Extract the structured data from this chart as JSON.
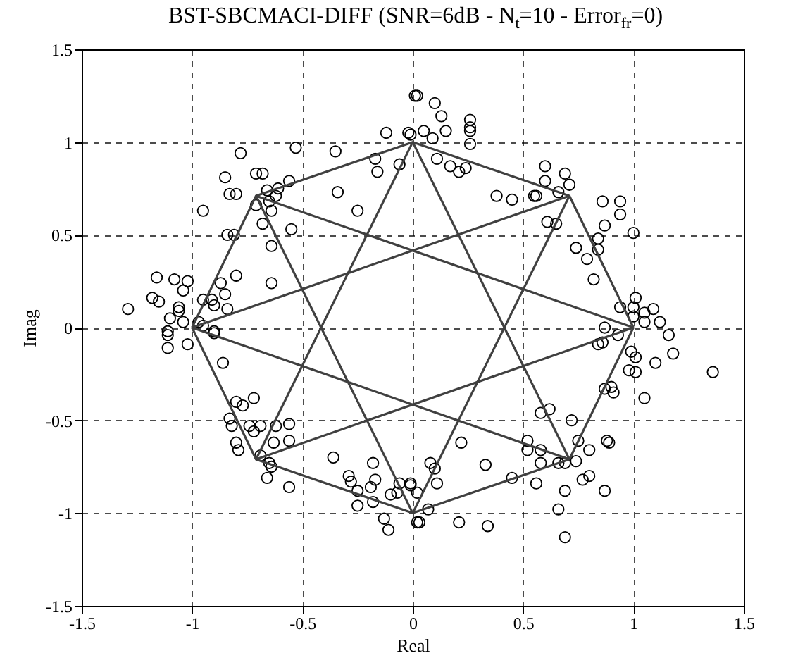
{
  "chart_data": {
    "type": "scatter",
    "title": "BST-SBCMACI-DIFF (SNR=6dB - N$_{t}$=10 - Error$_{fr}$=0)",
    "xlabel": "Real",
    "ylabel": "Imag",
    "xlim": [
      -1.5,
      1.5
    ],
    "ylim": [
      -1.5,
      1.5
    ],
    "xticks": [
      -1.5,
      -1,
      -0.5,
      0,
      0.5,
      1,
      1.5
    ],
    "yticks": [
      -1.5,
      -1,
      -0.5,
      0,
      0.5,
      1,
      1.5
    ],
    "grid": true,
    "series": [
      {
        "marker": "circle",
        "color": "#000000",
        "x": [
          0.01,
          -0.12,
          -0.01,
          -0.53,
          -0.35,
          -0.78,
          -0.17,
          -0.71,
          -0.68,
          -0.85,
          -0.16,
          -0.06,
          -0.83,
          -0.8,
          -0.56,
          -0.61,
          -0.66,
          -0.62,
          -0.65,
          -0.71,
          -0.64,
          -0.34,
          -0.25,
          -0.95,
          -0.68,
          -0.55,
          -0.84,
          -0.81,
          -0.64,
          -0.8,
          -0.64,
          -0.87,
          -1.16,
          -1.08,
          -1.02,
          -1.04,
          -0.85,
          -1.18,
          -1.15,
          -0.95,
          -0.91,
          -1.06,
          -1.06,
          -0.9,
          -0.84,
          -1.29,
          -1.1,
          -1.04,
          -0.97,
          -0.95,
          -1.11,
          -0.9,
          -1.11,
          -1.02,
          -1.11,
          -0.9,
          -0.86,
          -0.8,
          -0.77,
          -0.72,
          -0.83,
          -0.82,
          -0.74,
          -0.72,
          -0.69,
          -0.62,
          -0.56,
          -0.56,
          -0.63,
          -0.8,
          -0.79,
          -0.69,
          -0.65,
          -0.64,
          -0.66,
          -0.56,
          -0.36,
          -0.18,
          -0.29,
          -0.28,
          -0.17,
          -0.25,
          -0.19,
          -0.18,
          -0.25,
          -0.1,
          -0.06,
          -0.01,
          -0.07,
          -0.13,
          -0.11,
          0.02,
          0.08,
          0.1,
          0.11,
          -0.01,
          0.02,
          0.07,
          0.03,
          0.21,
          0.34,
          0.22,
          0.33,
          0.45,
          0.56,
          0.52,
          0.52,
          0.58,
          0.58,
          0.66,
          0.69,
          0.74,
          0.75,
          0.8,
          0.88,
          0.89,
          0.77,
          0.8,
          0.69,
          0.87,
          0.66,
          0.69,
          0.58,
          0.62,
          0.72,
          0.87,
          0.9,
          0.91,
          1.05,
          0.84,
          0.86,
          0.93,
          0.99,
          1.01,
          0.98,
          1.01,
          1.1,
          1.18,
          1.16,
          1.36,
          0.87,
          0.02,
          0.1,
          0.13,
          0.15,
          0.26,
          0.26,
          0.26,
          0.26,
          -0.02,
          0.05,
          0.09,
          0.11,
          0.17,
          0.21,
          0.24,
          0.38,
          0.45,
          0.55,
          0.56,
          0.6,
          0.69,
          0.71,
          0.6,
          0.66,
          0.61,
          0.65,
          0.86,
          0.94,
          0.94,
          0.87,
          1.0,
          0.84,
          0.74,
          0.84,
          0.79,
          0.82,
          0.94,
          1.01,
          1.0,
          1.05,
          1.09,
          1.12,
          1.0,
          1.05
        ],
        "values": [
          1.25,
          1.05,
          1.04,
          0.97,
          0.95,
          0.94,
          0.91,
          0.83,
          0.83,
          0.81,
          0.84,
          0.88,
          0.72,
          0.72,
          0.79,
          0.75,
          0.74,
          0.71,
          0.68,
          0.66,
          0.63,
          0.73,
          0.63,
          0.63,
          0.56,
          0.53,
          0.5,
          0.5,
          0.44,
          0.28,
          0.24,
          0.24,
          0.27,
          0.26,
          0.25,
          0.2,
          0.18,
          0.16,
          0.14,
          0.15,
          0.15,
          0.11,
          0.09,
          0.12,
          0.1,
          0.1,
          0.05,
          0.03,
          0.03,
          0.01,
          -0.02,
          -0.02,
          -0.04,
          -0.09,
          -0.11,
          -0.03,
          -0.19,
          -0.4,
          -0.42,
          -0.38,
          -0.49,
          -0.53,
          -0.53,
          -0.56,
          -0.53,
          -0.53,
          -0.52,
          -0.61,
          -0.62,
          -0.62,
          -0.66,
          -0.69,
          -0.73,
          -0.75,
          -0.81,
          -0.86,
          -0.7,
          -0.73,
          -0.8,
          -0.83,
          -0.82,
          -0.88,
          -0.86,
          -0.94,
          -0.96,
          -0.9,
          -0.84,
          -0.85,
          -0.89,
          -1.03,
          -1.09,
          -1.05,
          -0.73,
          -0.76,
          -0.84,
          -0.84,
          -0.89,
          -0.98,
          -1.05,
          -1.05,
          -1.07,
          -0.62,
          -0.74,
          -0.81,
          -0.84,
          -0.61,
          -0.66,
          -0.66,
          -0.73,
          -0.73,
          -0.73,
          -0.72,
          -0.61,
          -0.66,
          -0.61,
          -0.62,
          -0.82,
          -0.8,
          -0.88,
          -0.88,
          -0.98,
          -1.13,
          -0.46,
          -0.44,
          -0.5,
          -0.33,
          -0.32,
          -0.35,
          -0.38,
          -0.09,
          -0.08,
          -0.04,
          -0.13,
          -0.16,
          -0.23,
          -0.24,
          -0.19,
          -0.14,
          -0.04,
          -0.24,
          0.0,
          1.25,
          1.21,
          1.14,
          1.06,
          1.12,
          1.08,
          1.06,
          0.99,
          1.05,
          1.06,
          1.02,
          0.91,
          0.87,
          0.84,
          0.86,
          0.71,
          0.69,
          0.71,
          0.71,
          0.87,
          0.83,
          0.77,
          0.79,
          0.73,
          0.57,
          0.56,
          0.68,
          0.68,
          0.61,
          0.55,
          0.51,
          0.48,
          0.43,
          0.42,
          0.37,
          0.26,
          0.11,
          0.16,
          0.11,
          0.08,
          0.1,
          0.03,
          0.06,
          0.03
        ]
      },
      {
        "type": "line",
        "color": "#404040",
        "x": [
          -1,
          -0.71,
          0,
          0.71,
          1
        ],
        "values": [
          0,
          0.71,
          1,
          0.71,
          0
        ]
      },
      {
        "type": "line",
        "color": "#404040",
        "x": [
          -1,
          -0.71,
          0,
          0.71,
          1
        ],
        "values": [
          0,
          -0.71,
          -1,
          -0.71,
          0
        ]
      },
      {
        "type": "line",
        "color": "#404040",
        "x": [
          0,
          0.71
        ],
        "values": [
          1,
          -0.71
        ]
      },
      {
        "type": "line",
        "color": "#404040",
        "x": [
          -0.71,
          0
        ],
        "values": [
          -0.71,
          1
        ]
      },
      {
        "type": "line",
        "color": "#404040",
        "x": [
          -1,
          0.71
        ],
        "values": [
          0,
          0.71
        ]
      },
      {
        "type": "line",
        "color": "#404040",
        "x": [
          -1,
          0.71
        ],
        "values": [
          0,
          -0.71
        ]
      },
      {
        "type": "line",
        "color": "#404040",
        "x": [
          -0.71,
          1
        ],
        "values": [
          0.71,
          0
        ]
      },
      {
        "type": "line",
        "color": "#404040",
        "x": [
          -0.71,
          1
        ],
        "values": [
          -0.71,
          0
        ]
      },
      {
        "type": "line",
        "color": "#404040",
        "x": [
          -0.71,
          0
        ],
        "values": [
          0.71,
          -1
        ]
      },
      {
        "type": "line",
        "color": "#404040",
        "x": [
          0,
          0.71
        ],
        "values": [
          -1,
          0.71
        ]
      }
    ]
  }
}
